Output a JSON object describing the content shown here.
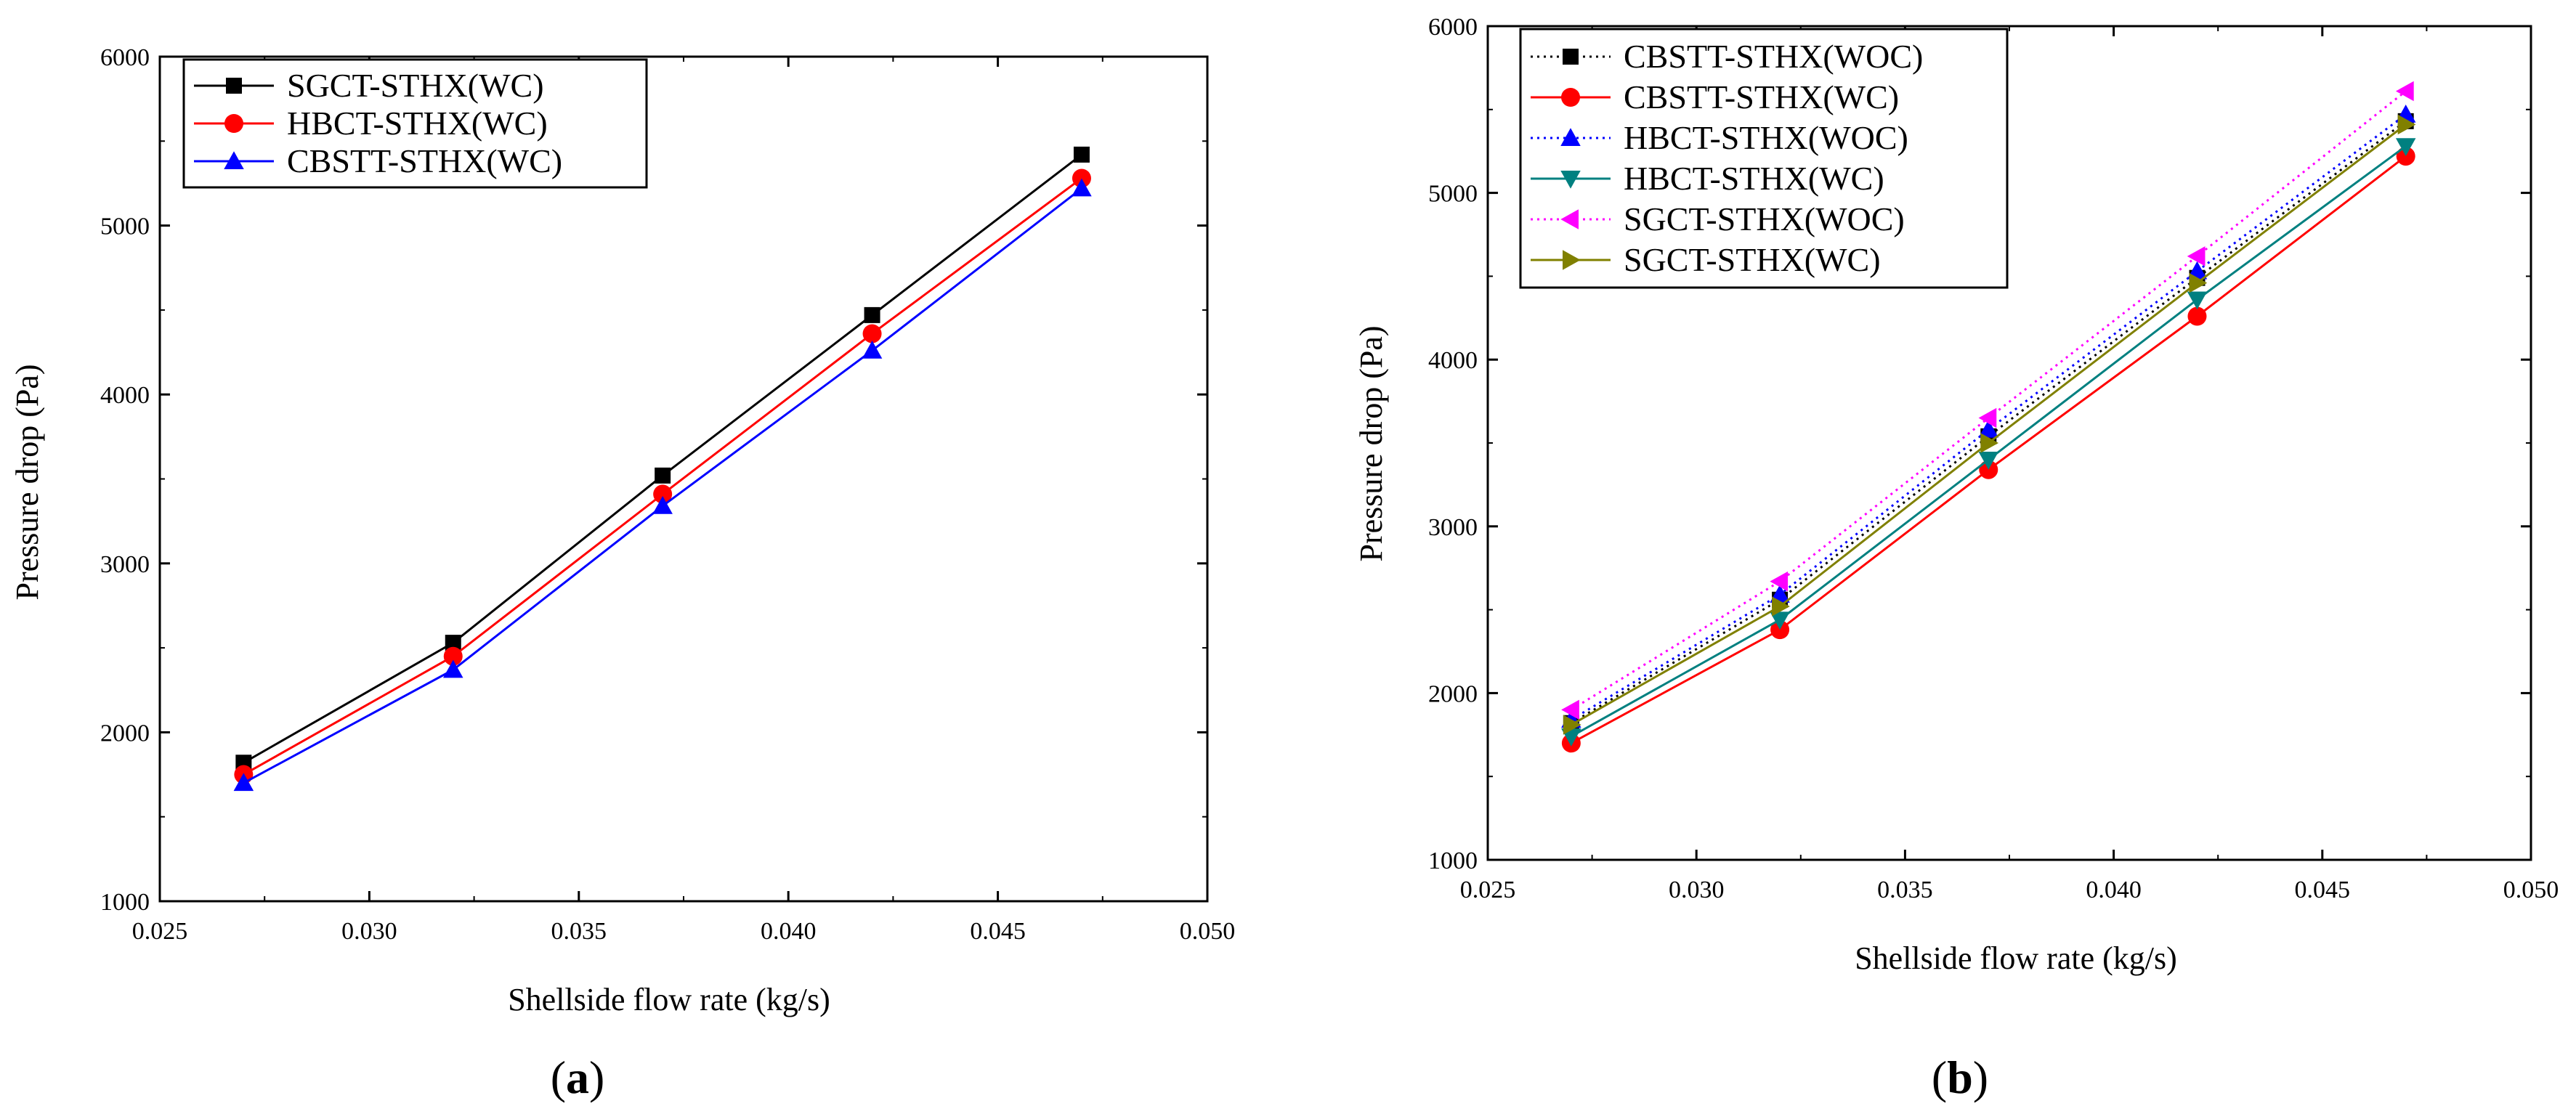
{
  "panels": [
    {
      "label": "a",
      "chart_data": {
        "type": "line",
        "title": "",
        "xlabel": "Shellside flow rate (kg/s)",
        "ylabel": "Pressure drop (Pa)",
        "xlim": [
          0.025,
          0.05
        ],
        "ylim": [
          1000,
          6000
        ],
        "xticks": [
          "0.025",
          "0.030",
          "0.035",
          "0.040",
          "0.045",
          "0.050"
        ],
        "yticks": [
          "1000",
          "2000",
          "3000",
          "4000",
          "5000",
          "6000"
        ],
        "x": [
          0.027,
          0.032,
          0.037,
          0.042,
          0.047
        ],
        "legend_position": "top-left",
        "series": [
          {
            "name": "SGCT-STHX(WC)",
            "values": [
              1820,
              2530,
              3520,
              4470,
              5420
            ],
            "color": "#000000",
            "marker": "square",
            "dash": "solid"
          },
          {
            "name": "HBCT-STHX(WC)",
            "values": [
              1750,
              2450,
              3410,
              4360,
              5280
            ],
            "color": "#ff0000",
            "marker": "circle",
            "dash": "solid"
          },
          {
            "name": "CBSTT-STHX(WC)",
            "values": [
              1700,
              2370,
              3340,
              4260,
              5220
            ],
            "color": "#0000ff",
            "marker": "triangle-up",
            "dash": "solid"
          }
        ]
      }
    },
    {
      "label": "b",
      "chart_data": {
        "type": "line",
        "title": "",
        "xlabel": "Shellside flow rate (kg/s)",
        "ylabel": "Pressure drop (Pa)",
        "xlim": [
          0.025,
          0.05
        ],
        "ylim": [
          1000,
          6000
        ],
        "xticks": [
          "0.025",
          "0.030",
          "0.035",
          "0.040",
          "0.045",
          "0.050"
        ],
        "yticks": [
          "1000",
          "2000",
          "3000",
          "4000",
          "5000",
          "6000"
        ],
        "x": [
          0.027,
          0.032,
          0.037,
          0.042,
          0.047
        ],
        "legend_position": "top-left",
        "series": [
          {
            "name": "CBSTT-STHX(WOC)",
            "values": [
              1820,
              2560,
              3540,
              4490,
              5430
            ],
            "color": "#000000",
            "marker": "square",
            "dash": "dotted"
          },
          {
            "name": "CBSTT-STHX(WC)",
            "values": [
              1700,
              2380,
              3340,
              4260,
              5220
            ],
            "color": "#ff0000",
            "marker": "circle",
            "dash": "solid"
          },
          {
            "name": "HBCT-STHX(WOC)",
            "values": [
              1840,
              2590,
              3580,
              4530,
              5470
            ],
            "color": "#0000ff",
            "marker": "triangle-up",
            "dash": "dotted"
          },
          {
            "name": "HBCT-STHX(WC)",
            "values": [
              1740,
              2440,
              3400,
              4360,
              5280
            ],
            "color": "#008080",
            "marker": "triangle-down",
            "dash": "solid"
          },
          {
            "name": "SGCT-STHX(WOC)",
            "values": [
              1900,
              2670,
              3650,
              4620,
              5610
            ],
            "color": "#ff00ff",
            "marker": "triangle-left",
            "dash": "dotted"
          },
          {
            "name": "SGCT-STHX(WC)",
            "values": [
              1810,
              2520,
              3500,
              4460,
              5410
            ],
            "color": "#808000",
            "marker": "triangle-right",
            "dash": "solid"
          }
        ]
      }
    }
  ]
}
